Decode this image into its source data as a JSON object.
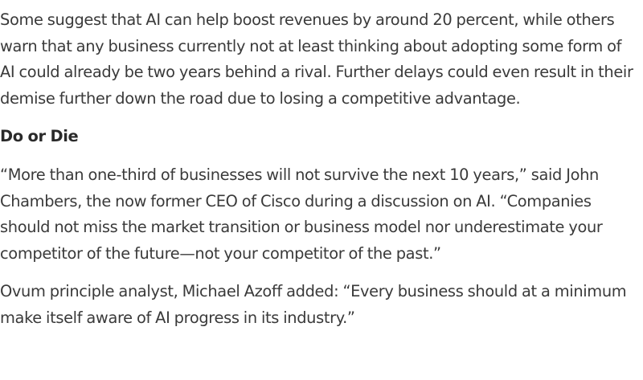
{
  "article": {
    "paragraph_1": "Some suggest that AI can help boost revenues by around 20 percent, while others warn that any business currently not at least thinking about adopting some form of AI could already be two years behind a rival. Further delays could even result in their demise further down the road due to losing a competitive advantage.",
    "heading": "Do or Die",
    "paragraph_2": "“More than one-third of businesses will not survive the next 10 years,” said John Chambers, the now former CEO of Cisco during a discussion on AI. “Companies should not miss the market transition or business model nor underestimate your competitor of the future—not your competitor of the past.”",
    "paragraph_3": "Ovum principle analyst, Michael Azoff added: “Every business should at a minimum make itself aware of AI progress in its industry.”"
  }
}
